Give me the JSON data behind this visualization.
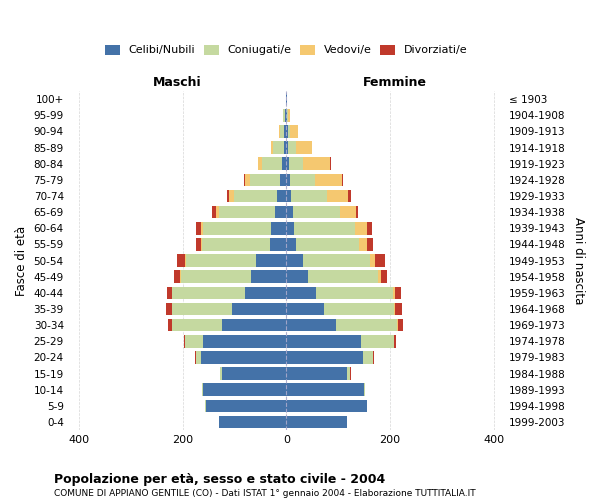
{
  "age_groups": [
    "0-4",
    "5-9",
    "10-14",
    "15-19",
    "20-24",
    "25-29",
    "30-34",
    "35-39",
    "40-44",
    "45-49",
    "50-54",
    "55-59",
    "60-64",
    "65-69",
    "70-74",
    "75-79",
    "80-84",
    "85-89",
    "90-94",
    "95-99",
    "100+"
  ],
  "birth_years": [
    "1999-2003",
    "1994-1998",
    "1989-1993",
    "1984-1988",
    "1979-1983",
    "1974-1978",
    "1969-1973",
    "1964-1968",
    "1959-1963",
    "1954-1958",
    "1949-1953",
    "1944-1948",
    "1939-1943",
    "1934-1938",
    "1929-1933",
    "1924-1928",
    "1919-1923",
    "1914-1918",
    "1909-1913",
    "1904-1908",
    "≤ 1903"
  ],
  "males": {
    "celibe": [
      130,
      155,
      160,
      125,
      165,
      160,
      125,
      105,
      80,
      68,
      58,
      32,
      30,
      22,
      18,
      12,
      8,
      5,
      4,
      3,
      1
    ],
    "coniugato": [
      0,
      1,
      2,
      3,
      10,
      35,
      95,
      115,
      140,
      135,
      135,
      130,
      130,
      108,
      82,
      58,
      38,
      20,
      8,
      3,
      0
    ],
    "vedovo": [
      0,
      0,
      0,
      0,
      0,
      0,
      0,
      1,
      1,
      2,
      2,
      3,
      4,
      6,
      10,
      10,
      8,
      5,
      2,
      1,
      0
    ],
    "divorziato": [
      0,
      0,
      0,
      0,
      2,
      3,
      8,
      12,
      10,
      12,
      15,
      10,
      10,
      8,
      5,
      2,
      0,
      0,
      0,
      0,
      0
    ]
  },
  "females": {
    "nubile": [
      118,
      155,
      150,
      118,
      148,
      145,
      95,
      72,
      58,
      42,
      32,
      18,
      15,
      12,
      10,
      8,
      5,
      4,
      3,
      2,
      1
    ],
    "coniugata": [
      0,
      1,
      2,
      5,
      20,
      62,
      118,
      135,
      148,
      135,
      130,
      122,
      118,
      92,
      68,
      48,
      28,
      15,
      5,
      2,
      0
    ],
    "vedova": [
      0,
      0,
      0,
      0,
      0,
      1,
      2,
      2,
      4,
      6,
      10,
      15,
      22,
      30,
      42,
      52,
      52,
      30,
      14,
      4,
      1
    ],
    "divorziata": [
      0,
      0,
      0,
      1,
      2,
      4,
      10,
      15,
      12,
      12,
      18,
      12,
      10,
      5,
      4,
      2,
      1,
      0,
      0,
      0,
      0
    ]
  },
  "color_celibe": "#4472a8",
  "color_coniugato": "#c5d9a0",
  "color_vedovo": "#f5c870",
  "color_divorziato": "#c0392b",
  "title_main": "Popolazione per età, sesso e stato civile - 2004",
  "title_sub": "COMUNE DI APPIANO GENTILE (CO) - Dati ISTAT 1° gennaio 2004 - Elaborazione TUTTITALIA.IT",
  "ylabel_left": "Fasce di età",
  "ylabel_right": "Anni di nascita",
  "xlabel_left": "Maschi",
  "xlabel_right": "Femmine",
  "xlim": 420,
  "bg_color": "#ffffff",
  "grid_color": "#cccccc"
}
